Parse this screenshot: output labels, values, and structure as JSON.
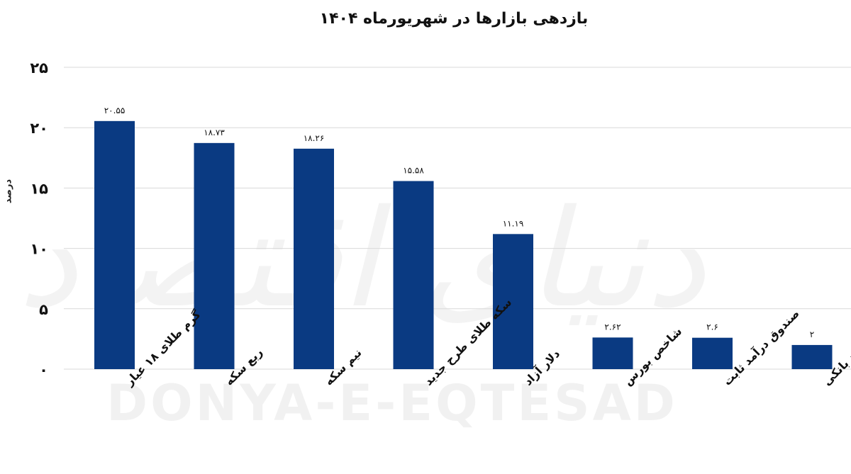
{
  "watermark": {
    "text_fa": "دنیای اقتصاد",
    "text_en": "DONYA-E-EQTESAD"
  },
  "colors": {
    "bar": "#0a3a82",
    "grid": "#d9d9d9",
    "text": "#111111"
  },
  "chart_data": {
    "type": "bar",
    "title": "بازدهی بازارها در شهریورماه ۱۴۰۴",
    "xlabel": "",
    "ylabel": "درصد",
    "ylim": [
      0,
      25
    ],
    "yticks": [
      0,
      5,
      10,
      15,
      20,
      25
    ],
    "ytick_labels": [
      "۰",
      "۵",
      "۱۰",
      "۱۵",
      "۲۰",
      "۲۵"
    ],
    "grid": true,
    "categories": [
      "گرم طلای ۱۸ عیار",
      "ربع سکه",
      "نیم سکه",
      "سکه طلای طرح جدید",
      "دلار آزاد",
      "شاخص بورس",
      "صندوق درآمد ثابت",
      "نرخ سود بانکی"
    ],
    "values": [
      20.55,
      18.73,
      18.26,
      15.58,
      11.19,
      2.62,
      2.6,
      2
    ],
    "value_labels": [
      "۲۰.۵۵",
      "۱۸.۷۳",
      "۱۸.۲۶",
      "۱۵.۵۸",
      "۱۱.۱۹",
      "۲.۶۲",
      "۲.۶",
      "۲"
    ]
  }
}
